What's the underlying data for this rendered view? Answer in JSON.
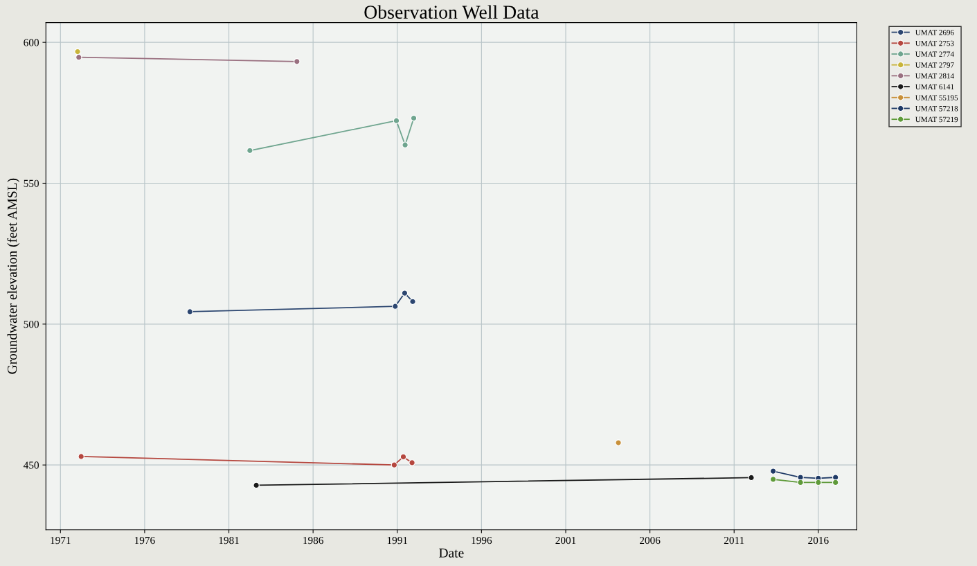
{
  "chart_data": {
    "type": "line",
    "title": "Observation Well Data",
    "xlabel": "Date",
    "ylabel": "Groundwater elevation (feet AMSL)",
    "xlim": [
      "1970-02-20",
      "2018-04-15"
    ],
    "xticks": [
      {
        "value": "1971-01-01",
        "label": "1971"
      },
      {
        "value": "1976-01-01",
        "label": "1976"
      },
      {
        "value": "1981-01-01",
        "label": "1981"
      },
      {
        "value": "1986-01-01",
        "label": "1986"
      },
      {
        "value": "1991-01-01",
        "label": "1991"
      },
      {
        "value": "1996-01-01",
        "label": "1996"
      },
      {
        "value": "2001-01-01",
        "label": "2001"
      },
      {
        "value": "2006-01-01",
        "label": "2006"
      },
      {
        "value": "2011-01-01",
        "label": "2011"
      },
      {
        "value": "2016-01-01",
        "label": "2016"
      }
    ],
    "ylim": [
      427,
      607
    ],
    "yticks": [
      450,
      500,
      550,
      600
    ],
    "grid": true,
    "legend": "top right",
    "marker": "circle",
    "line_style": "solid",
    "series": [
      {
        "name": "UMAT 2696",
        "color": "#2c4670",
        "x": [
          "1978-09-09",
          "1990-11-17",
          "1991-06-10",
          "1991-12-01"
        ],
        "values": [
          504.4,
          506.3,
          511.0,
          508.0
        ]
      },
      {
        "name": "UMAT 2753",
        "color": "#b5473f",
        "x": [
          "1972-03-25",
          "1990-10-27",
          "1991-05-12",
          "1991-11-17"
        ],
        "values": [
          453.0,
          450.0,
          452.9,
          450.8
        ]
      },
      {
        "name": "UMAT 2774",
        "color": "#6fa58f",
        "x": [
          "1982-04-01",
          "1990-12-13",
          "1991-06-20",
          "1991-12-24"
        ],
        "values": [
          561.6,
          572.2,
          563.6,
          573.1
        ]
      },
      {
        "name": "UMAT 2797",
        "color": "#c8b43a",
        "x": [
          "1972-01-08"
        ],
        "values": [
          596.7
        ]
      },
      {
        "name": "UMAT 2814",
        "color": "#9a7080",
        "x": [
          "1972-02-03",
          "1985-01-15"
        ],
        "values": [
          594.7,
          593.2
        ]
      },
      {
        "name": "UMAT 6141",
        "color": "#1a1a1a",
        "x": [
          "1982-08-18",
          "2012-01-08"
        ],
        "values": [
          442.8,
          445.5
        ]
      },
      {
        "name": "UMAT 55195",
        "color": "#c8903a",
        "x": [
          "2004-02-17"
        ],
        "values": [
          457.9
        ]
      },
      {
        "name": "UMAT 57218",
        "color": "#1f3a66",
        "x": [
          "2013-04-27",
          "2014-12-10",
          "2016-01-01",
          "2017-01-08"
        ],
        "values": [
          447.8,
          445.6,
          445.3,
          445.6
        ]
      },
      {
        "name": "UMAT 57219",
        "color": "#5f9a3a",
        "x": [
          "2013-04-27",
          "2014-12-10",
          "2016-01-01",
          "2017-01-08"
        ],
        "values": [
          444.9,
          443.8,
          443.8,
          443.8
        ]
      }
    ]
  }
}
